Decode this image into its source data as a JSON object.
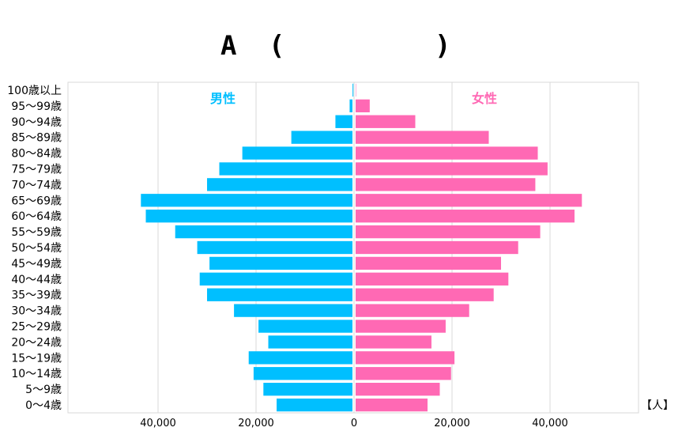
{
  "title": {
    "letter": "A",
    "open_paren": "(",
    "close_paren": ")"
  },
  "unit_label": "【人】",
  "chart_data": {
    "type": "bar",
    "subtype": "population-pyramid",
    "categories": [
      "100歳以上",
      "95～99歳",
      "90～94歳",
      "85～89歳",
      "80～84歳",
      "75～79歳",
      "70～74歳",
      "65～69歳",
      "60～64歳",
      "55～59歳",
      "50～54歳",
      "45～49歳",
      "40～44歳",
      "35～39歳",
      "30～34歳",
      "25～29歳",
      "20～24歳",
      "15～19歳",
      "10～14歳",
      "5～9歳",
      "0～4歳"
    ],
    "series": [
      {
        "name": "男性",
        "color": "#00BFFF",
        "values": [
          300,
          900,
          3800,
          12800,
          22800,
          27500,
          30000,
          43500,
          42500,
          36500,
          32000,
          29500,
          31500,
          30000,
          24500,
          19500,
          17500,
          21500,
          20500,
          18500,
          15800
        ]
      },
      {
        "name": "女性",
        "color": "#FF69B4",
        "values": [
          400,
          3200,
          12500,
          27500,
          37500,
          39500,
          37000,
          46500,
          45000,
          38000,
          33500,
          30000,
          31500,
          28500,
          23500,
          18700,
          15800,
          20500,
          19800,
          17500,
          15000
        ]
      }
    ],
    "xlim": [
      -64000,
      58000
    ],
    "x_ticks": [
      -40000,
      -20000,
      0,
      20000,
      40000
    ],
    "x_tick_labels": [
      "40,000",
      "20,000",
      "0",
      "20,000",
      "40,000"
    ],
    "grid": true
  }
}
